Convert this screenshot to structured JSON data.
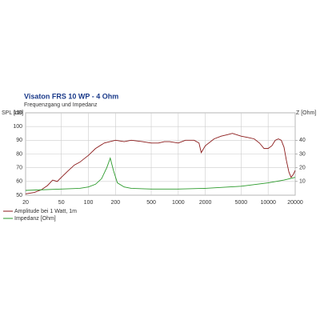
{
  "chart_data": {
    "type": "line",
    "title": "Visaton FRS 10 WP - 4 Ohm",
    "subtitle": "Frequenzgang und Impedanz",
    "y_label": "SPL [dB]",
    "y2_label": "Z [Ohm]",
    "x_scale": "log",
    "grid": true,
    "xlim": [
      20,
      20000
    ],
    "xticks": [
      20,
      50,
      100,
      200,
      500,
      1000,
      2000,
      5000,
      10000,
      20000
    ],
    "ylim": [
      50,
      110
    ],
    "yticks": [
      50,
      60,
      70,
      80,
      90,
      100,
      110
    ],
    "y2lim": [
      0,
      60
    ],
    "y2ticks": [
      10,
      20,
      30,
      40
    ],
    "series": [
      {
        "name": "Amplitude bei 1 Watt, 1m",
        "color": "#8b1a1a",
        "axis": "y",
        "x": [
          20,
          25,
          30,
          35,
          40,
          45,
          50,
          60,
          70,
          80,
          100,
          120,
          150,
          200,
          250,
          300,
          400,
          500,
          600,
          700,
          800,
          1000,
          1200,
          1500,
          1700,
          1800,
          2000,
          2500,
          3000,
          3500,
          4000,
          5000,
          6000,
          7000,
          8000,
          9000,
          10000,
          11000,
          12000,
          13000,
          14000,
          15000,
          16000,
          17000,
          18000,
          19000,
          20000
        ],
        "values": [
          51,
          52,
          54,
          57,
          61,
          60,
          63,
          68,
          72,
          74,
          79,
          84,
          88,
          90,
          89,
          90,
          89,
          88,
          88,
          89,
          89,
          88,
          90,
          90,
          88,
          81,
          86,
          91,
          93,
          94,
          95,
          93,
          92,
          91,
          88,
          84,
          84,
          86,
          90,
          91,
          90,
          85,
          75,
          67,
          63,
          65,
          68
        ]
      },
      {
        "name": "Impedanz [Ohm]",
        "color": "#2a9a2a",
        "axis": "y2",
        "x": [
          20,
          50,
          80,
          100,
          120,
          140,
          160,
          175,
          190,
          210,
          250,
          300,
          500,
          1000,
          2000,
          5000,
          10000,
          15000,
          20000
        ],
        "values": [
          3.5,
          4.5,
          5,
          6,
          8,
          12,
          20,
          27,
          18,
          9,
          6,
          5,
          4.5,
          4.5,
          5,
          6.5,
          9,
          11,
          13
        ]
      }
    ]
  }
}
